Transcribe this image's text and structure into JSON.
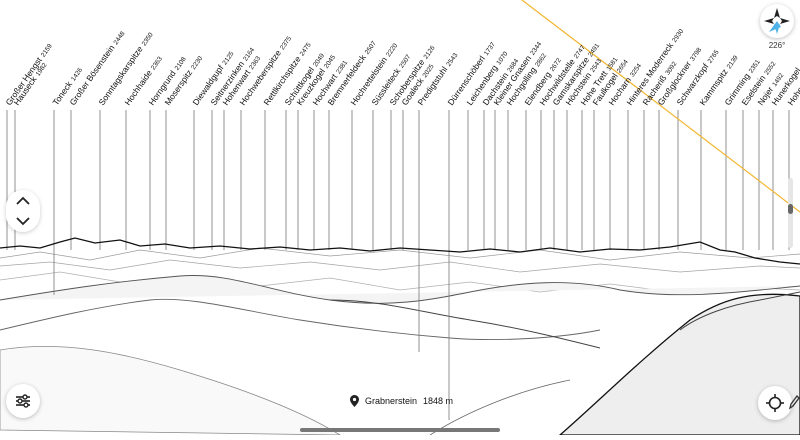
{
  "peaks": [
    {
      "name": "Großer Hengst",
      "elev": "2159"
    },
    {
      "name": "Hauseck",
      "elev": "1982"
    },
    {
      "name": "Toneck",
      "elev": "1426"
    },
    {
      "name": "Großer Bösenstein",
      "elev": "2448"
    },
    {
      "name": "Sonntagskarspitze",
      "elev": "2350"
    },
    {
      "name": "Hochhaide",
      "elev": "2363"
    },
    {
      "name": "Horngrund",
      "elev": "2108"
    },
    {
      "name": "Moserspitz",
      "elev": "2230"
    },
    {
      "name": "Diewaldgupf",
      "elev": "2125"
    },
    {
      "name": "Seitnerzinken",
      "elev": "2164"
    },
    {
      "name": "Hohenwart",
      "elev": "2363"
    },
    {
      "name": "Hochweberspitze",
      "elev": "2375"
    },
    {
      "name": "Rettlkirchspitze",
      "elev": "2475"
    },
    {
      "name": "Schüttkogel",
      "elev": "2049"
    },
    {
      "name": "Kreuzkogel",
      "elev": "2045"
    },
    {
      "name": "Hochwart",
      "elev": "2381"
    },
    {
      "name": "Bremnerfeldeck",
      "elev": "2507"
    },
    {
      "name": "Hochrettelstein",
      "elev": "2220"
    },
    {
      "name": "Süssleiteck",
      "elev": "2507"
    },
    {
      "name": "Schoberspitze",
      "elev": "2126"
    },
    {
      "name": "Goaleck",
      "elev": "2025"
    },
    {
      "name": "Predigtstuhl",
      "elev": "2543"
    },
    {
      "name": "Dürrenschöberl",
      "elev": "1737"
    },
    {
      "name": "Leichenberg",
      "elev": "1070"
    },
    {
      "name": "Dachstein",
      "elev": "2684"
    },
    {
      "name": "Kleiner Gnasen",
      "elev": "2344"
    },
    {
      "name": "Hochgolling",
      "elev": "2862"
    },
    {
      "name": "Elendberg",
      "elev": "2672"
    },
    {
      "name": "Hochwildstelle",
      "elev": "2747"
    },
    {
      "name": "Gamskarspitze",
      "elev": "2491"
    },
    {
      "name": "Höchstein",
      "elev": "2543"
    },
    {
      "name": "Hohe Trett",
      "elev": "1581"
    },
    {
      "name": "Faulkogel",
      "elev": "2654"
    },
    {
      "name": "Hocharn",
      "elev": "3254"
    },
    {
      "name": "Hinteres Moderreck",
      "elev": "2930"
    },
    {
      "name": "Racheriß",
      "elev": "3092"
    },
    {
      "name": "Großglockner",
      "elev": "3798"
    },
    {
      "name": "Schwarzkopf",
      "elev": "2765"
    },
    {
      "name": "Kammspitz",
      "elev": "2139"
    },
    {
      "name": "Grimming",
      "elev": "2351"
    },
    {
      "name": "Eselstein",
      "elev": "2552"
    },
    {
      "name": "Nojer",
      "elev": "1492"
    },
    {
      "name": "Hunerkogel",
      "elev": ""
    },
    {
      "name": "Hoher Dachstein",
      "elev": ""
    }
  ],
  "compass": {
    "bearing": "226°",
    "icon": "compass-icon"
  },
  "location": {
    "name": "Grabnerstein",
    "elev": "1848 m",
    "icon": "location-pin-icon"
  },
  "controls": {
    "settings_icon": "settings-sliders-icon",
    "target_icon": "crosshair-target-icon",
    "up_icon": "chevron-up-icon",
    "down_icon": "chevron-down-icon",
    "edit_icon": "pencil-icon"
  },
  "colors": {
    "sun_line": "#f2b632",
    "compass_accent": "#4fb3e8",
    "ridge": "#111111"
  }
}
